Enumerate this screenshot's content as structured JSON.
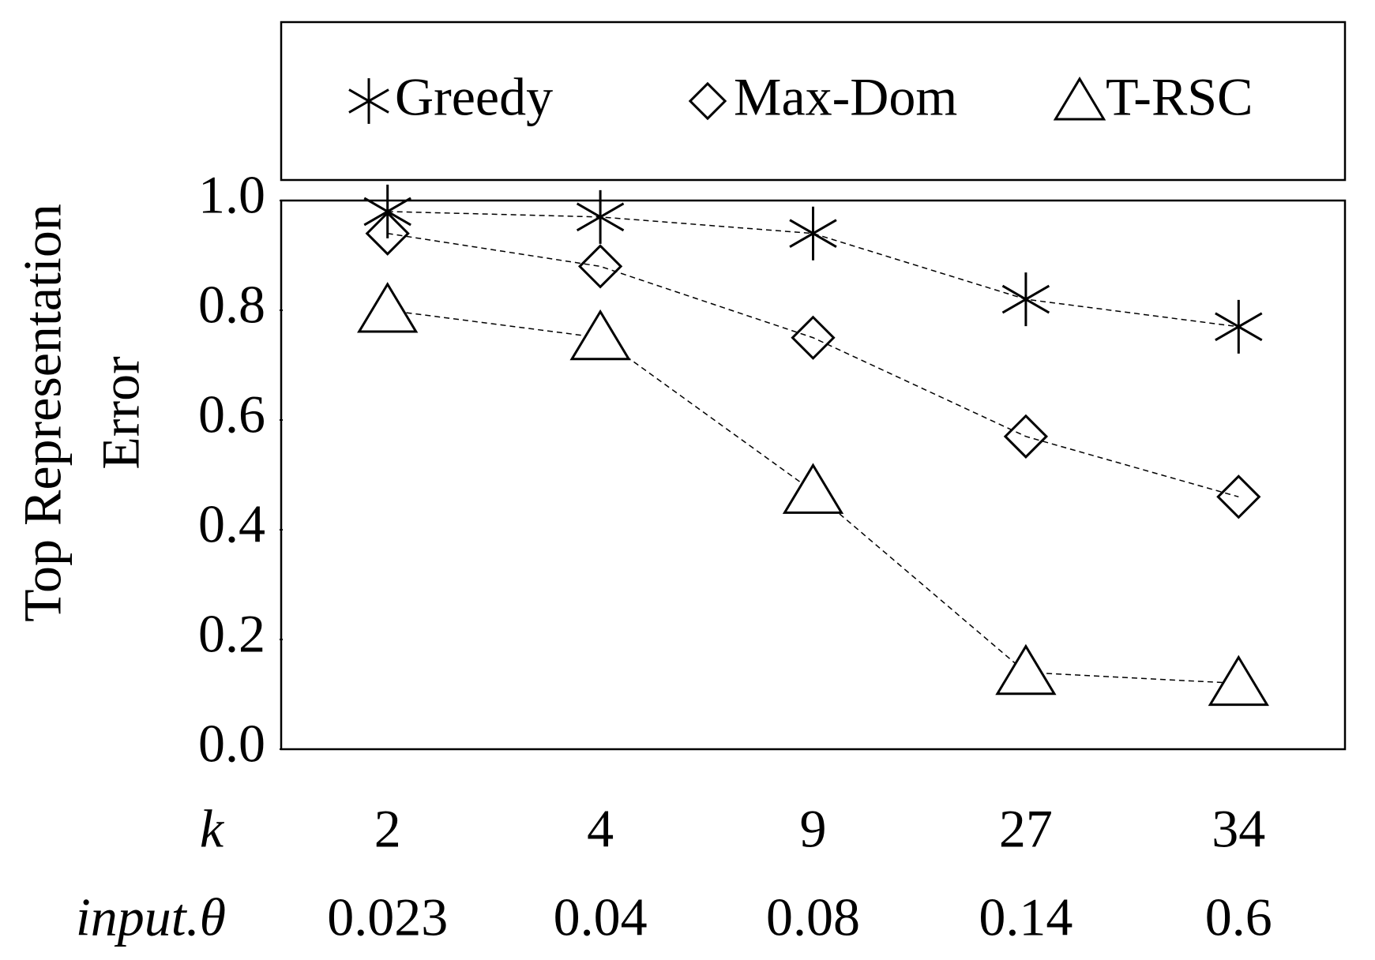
{
  "chart_data": {
    "type": "line",
    "ylabel_lines": [
      "Top Representation",
      "Error"
    ],
    "row_labels": [
      "k",
      "input.θ"
    ],
    "categories": [
      "2",
      "4",
      "9",
      "27",
      "34"
    ],
    "categories2": [
      "0.023",
      "0.04",
      "0.08",
      "0.14",
      "0.6"
    ],
    "series": [
      {
        "name": "Greedy",
        "color": "#000000",
        "marker": "asterisk",
        "values": [
          0.98,
          0.97,
          0.94,
          0.82,
          0.77
        ]
      },
      {
        "name": "Max-Dom",
        "color": "#000000",
        "marker": "diamond",
        "values": [
          0.94,
          0.88,
          0.75,
          0.57,
          0.46
        ]
      },
      {
        "name": "T-RSC",
        "color": "#000000",
        "marker": "triangle",
        "values": [
          0.8,
          0.75,
          0.47,
          0.14,
          0.12
        ]
      }
    ],
    "ylim": [
      0,
      1
    ],
    "yticks": [
      {
        "value": 0,
        "label": "0.0"
      },
      0.2,
      0.4,
      0.6,
      0.8,
      {
        "value": 1,
        "label": "1.0"
      }
    ],
    "legend": "top"
  }
}
